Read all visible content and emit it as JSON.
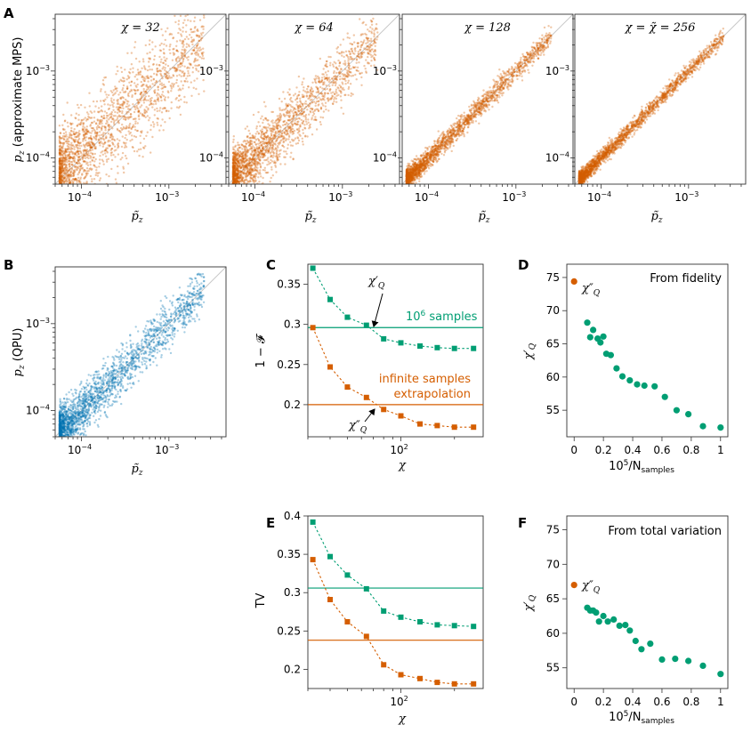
{
  "colors": {
    "orange": "#d55e00",
    "green": "#009e73",
    "blue": "#0072b2",
    "diagonal": "#c8c8c8"
  },
  "panels": {
    "A": {
      "label": "A",
      "ylabel_var": "p",
      "ylabel_sub": "z",
      "ylabel_text": "(approximate MPS)",
      "xlabel": "p̃",
      "xlabel_sub": "z",
      "subplot_titles": [
        "χ = 32",
        "χ = 64",
        "χ = 128",
        "χ = χ̃ = 256"
      ],
      "spreads": [
        0.28,
        0.17,
        0.06,
        0.045
      ]
    },
    "B": {
      "label": "B",
      "ylabel_var": "p",
      "ylabel_sub": "z",
      "ylabel_text": "(QPU)",
      "xlabel": "p̃",
      "xlabel_sub": "z",
      "spread": 0.14
    },
    "C": {
      "label": "C",
      "ylabel": "1 − 𝓕",
      "xlabel": "χ",
      "annotation_green": "10",
      "annotation_green_sup": "6",
      "annotation_green_rest": " samples",
      "annotation_orange_1": "infinite samples",
      "annotation_orange_2": "extrapolation",
      "chi_q_prime": "χ′",
      "chi_q_double": "χ″",
      "chi_sub": "Q"
    },
    "D": {
      "label": "D",
      "title": "From fidelity",
      "ylabel": "χ′",
      "ylabel_sub": "Q",
      "xlabel_base": "10",
      "xlabel_exp": "5",
      "xlabel_rest": "/N",
      "xlabel_sub": "samples",
      "marker_label": "χ″",
      "marker_sub": "Q"
    },
    "E": {
      "label": "E",
      "ylabel": "TV",
      "xlabel": "χ"
    },
    "F": {
      "label": "F",
      "title": "From total variation",
      "ylabel": "χ′",
      "ylabel_sub": "Q",
      "xlabel_base": "10",
      "xlabel_exp": "5",
      "xlabel_rest": "/N",
      "xlabel_sub": "samples",
      "marker_label": "χ″",
      "marker_sub": "Q"
    }
  },
  "chart_data": [
    {
      "panel": "A",
      "type": "scatter",
      "subplots": [
        "χ = 32",
        "χ = 64",
        "χ = 128",
        "χ = χ̃ = 256"
      ],
      "xscale": "log",
      "yscale": "log",
      "xlim": [
        5e-05,
        0.0045
      ],
      "ylim": [
        5e-05,
        0.0045
      ],
      "x_ticks": [
        "10^-4",
        "10^-3"
      ],
      "y_ticks": [
        "10^-4",
        "10^-3"
      ],
      "diagonal": true,
      "point_count": 2200
    },
    {
      "panel": "B",
      "type": "scatter",
      "xscale": "log",
      "yscale": "log",
      "xlim": [
        5e-05,
        0.0045
      ],
      "ylim": [
        5e-05,
        0.0045
      ],
      "x_ticks": [
        "10^-4",
        "10^-3"
      ],
      "y_ticks": [
        "10^-4",
        "10^-3"
      ],
      "diagonal": true,
      "point_count": 2200
    },
    {
      "panel": "C",
      "type": "line",
      "xscale": "log",
      "xlim": [
        30,
        290
      ],
      "ylim": [
        0.16,
        0.375
      ],
      "x_ticks": [
        "10^2"
      ],
      "y_ticks": [
        0.2,
        0.25,
        0.3,
        0.35
      ],
      "x": [
        32,
        40,
        50,
        64,
        80,
        100,
        128,
        160,
        200,
        256
      ],
      "series": [
        {
          "name": "10^6 samples",
          "values": [
            0.37,
            0.331,
            0.309,
            0.299,
            0.282,
            0.277,
            0.273,
            0.271,
            0.27,
            0.27
          ],
          "hline": 0.296
        },
        {
          "name": "infinite samples extrapolation",
          "values": [
            0.296,
            0.247,
            0.222,
            0.209,
            0.194,
            0.186,
            0.176,
            0.174,
            0.172,
            0.172
          ],
          "hline": 0.2
        }
      ]
    },
    {
      "panel": "D",
      "type": "scatter",
      "xlim": [
        -0.05,
        1.05
      ],
      "ylim": [
        51,
        77
      ],
      "x_ticks": [
        0,
        0.2,
        0.4,
        0.6,
        0.8,
        1
      ],
      "y_ticks": [
        55,
        60,
        65,
        70,
        75
      ],
      "chi_q_double": 74.4,
      "x": [
        0.09,
        0.11,
        0.13,
        0.16,
        0.18,
        0.2,
        0.22,
        0.25,
        0.29,
        0.33,
        0.38,
        0.43,
        0.48,
        0.55,
        0.62,
        0.7,
        0.78,
        0.88,
        1.0
      ],
      "y": [
        68.2,
        66.0,
        67.1,
        65.8,
        65.2,
        66.1,
        63.5,
        63.3,
        61.3,
        60.1,
        59.5,
        58.9,
        58.7,
        58.6,
        57.0,
        55.0,
        54.4,
        52.6,
        52.4
      ]
    },
    {
      "panel": "E",
      "type": "line",
      "xscale": "log",
      "xlim": [
        30,
        290
      ],
      "ylim": [
        0.175,
        0.4
      ],
      "x_ticks": [
        "10^2"
      ],
      "y_ticks": [
        0.2,
        0.25,
        0.3,
        0.35,
        0.4
      ],
      "x": [
        32,
        40,
        50,
        64,
        80,
        100,
        128,
        160,
        200,
        256
      ],
      "series": [
        {
          "name": "10^6 samples",
          "values": [
            0.392,
            0.347,
            0.323,
            0.305,
            0.276,
            0.268,
            0.262,
            0.258,
            0.257,
            0.256
          ],
          "hline": 0.306
        },
        {
          "name": "infinite samples extrapolation",
          "values": [
            0.343,
            0.291,
            0.262,
            0.243,
            0.206,
            0.193,
            0.188,
            0.183,
            0.181,
            0.181
          ],
          "hline": 0.238
        }
      ]
    },
    {
      "panel": "F",
      "type": "scatter",
      "xlim": [
        -0.05,
        1.05
      ],
      "ylim": [
        52,
        77
      ],
      "x_ticks": [
        0,
        0.2,
        0.4,
        0.6,
        0.8,
        1
      ],
      "y_ticks": [
        55,
        60,
        65,
        70,
        75
      ],
      "chi_q_double": 67.0,
      "x": [
        0.09,
        0.11,
        0.13,
        0.15,
        0.17,
        0.2,
        0.23,
        0.27,
        0.31,
        0.35,
        0.38,
        0.42,
        0.46,
        0.52,
        0.6,
        0.69,
        0.78,
        0.88,
        1.0
      ],
      "y": [
        63.7,
        63.3,
        63.3,
        63.0,
        61.7,
        62.5,
        61.7,
        62.0,
        61.1,
        61.2,
        60.4,
        58.9,
        57.7,
        58.5,
        56.2,
        56.3,
        56.0,
        55.3,
        54.1
      ]
    }
  ]
}
